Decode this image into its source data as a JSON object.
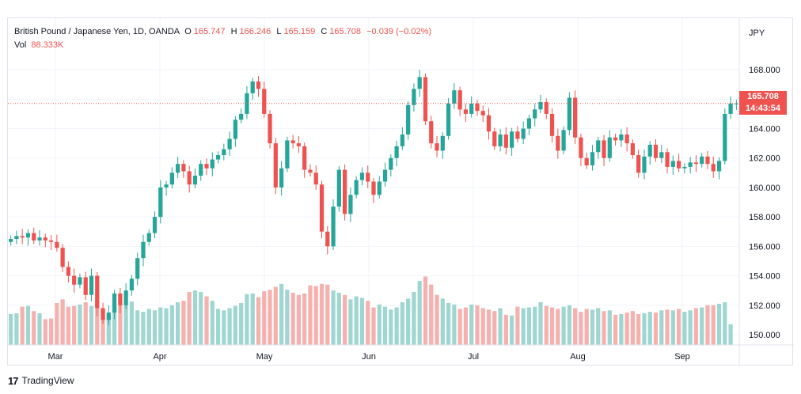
{
  "legend": {
    "instrument": "British Pound / Japanese Yen, 1D, OANDA",
    "open_label": "O",
    "open_value": "165.747",
    "high_label": "H",
    "high_value": "166.246",
    "low_label": "L",
    "low_value": "165.159",
    "close_label": "C",
    "close_value": "165.708",
    "change": "−0.039 (−0.02%)",
    "vol_label": "Vol",
    "vol_value": "88.333K"
  },
  "price_tag": {
    "price": "165.708",
    "countdown": "14:43:54"
  },
  "footer": {
    "logo": "17",
    "brand": "TradingView"
  },
  "colors": {
    "up": "#26a69a",
    "down": "#ef5350",
    "vol_up": "#9fd6d1",
    "vol_down": "#f5b1ae"
  },
  "chart_data": {
    "type": "candlestick",
    "currency_label": "JPY",
    "y_axis_ticks": [
      "168.000",
      "166.000",
      "164.000",
      "162.000",
      "160.000",
      "158.000",
      "156.000",
      "154.000",
      "152.000",
      "150.000"
    ],
    "ylim": [
      149.3,
      171.5
    ],
    "x_axis_labels": [
      "Mar",
      "Apr",
      "May",
      "Jun",
      "Jul",
      "Aug",
      "Sep"
    ],
    "last_price": 165.708,
    "grid": true,
    "candles_close": [
      156.5,
      156.7,
      156.6,
      156.9,
      156.4,
      156.6,
      156.4,
      156.3,
      155.9,
      154.6,
      154.0,
      153.4,
      153.9,
      152.7,
      154.0,
      151.8,
      151.0,
      151.5,
      152.8,
      152.0,
      153.0,
      153.8,
      155.2,
      156.3,
      156.9,
      158.0,
      160.0,
      160.2,
      161.0,
      161.6,
      161.1,
      160.2,
      160.8,
      161.6,
      161.3,
      161.9,
      162.2,
      162.6,
      163.3,
      164.6,
      165.0,
      166.4,
      167.2,
      166.7,
      165.0,
      163.0,
      160.0,
      161.3,
      163.2,
      163.0,
      162.8,
      161.2,
      161.0,
      160.2,
      157.0,
      156.0,
      158.7,
      161.2,
      158.2,
      159.5,
      160.5,
      161.0,
      160.4,
      159.5,
      160.4,
      161.2,
      162.0,
      162.8,
      163.6,
      165.6,
      166.7,
      167.5,
      164.5,
      163.0,
      162.5,
      163.5,
      165.7,
      166.6,
      165.3,
      165.0,
      165.7,
      165.2,
      164.9,
      163.8,
      162.8,
      163.6,
      162.7,
      163.8,
      163.3,
      164.0,
      164.7,
      165.3,
      165.8,
      165.0,
      163.5,
      162.5,
      163.9,
      166.1,
      163.4,
      162.0,
      161.5,
      162.4,
      163.2,
      162.0,
      163.4,
      163.2,
      163.6,
      163.0,
      162.2,
      161.0,
      162.1,
      162.9,
      162.0,
      162.4,
      161.4,
      161.8,
      161.3,
      161.4,
      161.7,
      161.6,
      162.1,
      161.6,
      161.1,
      161.8,
      165.0,
      165.7,
      165.7
    ],
    "volume_relative": [
      0.42,
      0.43,
      0.52,
      0.53,
      0.46,
      0.43,
      0.35,
      0.36,
      0.57,
      0.62,
      0.52,
      0.53,
      0.55,
      0.58,
      0.53,
      0.6,
      0.45,
      0.38,
      0.47,
      0.56,
      0.54,
      0.59,
      0.47,
      0.45,
      0.49,
      0.47,
      0.51,
      0.5,
      0.54,
      0.58,
      0.6,
      0.72,
      0.74,
      0.72,
      0.66,
      0.6,
      0.49,
      0.47,
      0.5,
      0.53,
      0.57,
      0.69,
      0.7,
      0.65,
      0.73,
      0.75,
      0.79,
      0.83,
      0.75,
      0.71,
      0.68,
      0.7,
      0.81,
      0.8,
      0.83,
      0.82,
      0.74,
      0.71,
      0.68,
      0.62,
      0.66,
      0.64,
      0.6,
      0.51,
      0.55,
      0.52,
      0.48,
      0.51,
      0.58,
      0.63,
      0.72,
      0.87,
      0.93,
      0.82,
      0.68,
      0.63,
      0.57,
      0.55,
      0.49,
      0.51,
      0.55,
      0.54,
      0.5,
      0.48,
      0.46,
      0.5,
      0.41,
      0.4,
      0.52,
      0.5,
      0.51,
      0.52,
      0.58,
      0.53,
      0.51,
      0.49,
      0.52,
      0.54,
      0.5,
      0.45,
      0.49,
      0.48,
      0.5,
      0.46,
      0.47,
      0.41,
      0.42,
      0.44,
      0.46,
      0.42,
      0.43,
      0.45,
      0.44,
      0.47,
      0.48,
      0.47,
      0.49,
      0.45,
      0.47,
      0.5,
      0.51,
      0.54,
      0.54,
      0.56,
      0.58,
      0.28
    ]
  }
}
